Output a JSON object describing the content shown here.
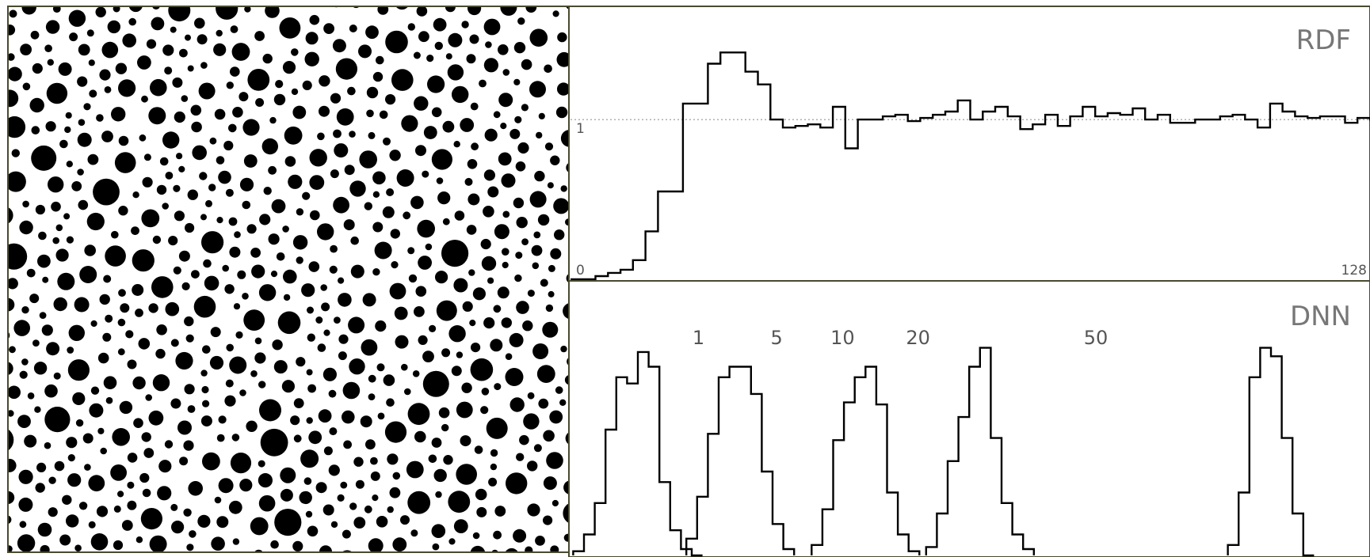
{
  "colors": {
    "frame": "#4a4a30",
    "ink": "#000000",
    "label": "#555555",
    "panel_title": "#777777",
    "reference_line": "#888888",
    "background": "#ffffff"
  },
  "point_pattern": {
    "shape": "disk",
    "color": "#000000",
    "size_classes": [
      "small",
      "medium",
      "large"
    ],
    "note_visible": ""
  },
  "chart_data": [
    {
      "panel": "rdf",
      "type": "line",
      "style": "step",
      "title": "RDF",
      "xlim": [
        0,
        128
      ],
      "ylim": [
        0,
        1.6
      ],
      "x_tick_labels": [
        "0",
        "128"
      ],
      "y_tick_labels": [
        "1"
      ],
      "reference_line": 1,
      "grid": false,
      "bin_width": 2,
      "values": [
        0.0,
        0.0,
        0.02,
        0.04,
        0.06,
        0.12,
        0.3,
        0.55,
        0.55,
        1.1,
        1.1,
        1.35,
        1.42,
        1.42,
        1.3,
        1.22,
        1.0,
        0.95,
        0.96,
        0.97,
        0.95,
        1.08,
        0.82,
        1.0,
        1.0,
        1.02,
        1.03,
        0.99,
        1.01,
        1.03,
        1.05,
        1.12,
        1.0,
        1.05,
        1.08,
        1.02,
        0.94,
        0.97,
        1.03,
        0.96,
        1.02,
        1.08,
        1.02,
        1.04,
        1.03,
        1.07,
        1.0,
        1.03,
        0.98,
        0.98,
        1.0,
        1.0,
        1.02,
        1.03,
        1.0,
        0.95,
        1.1,
        1.05,
        1.02,
        1.01,
        1.02,
        1.02,
        0.98,
        1.01,
        1.0
      ]
    },
    {
      "panel": "dnn",
      "type": "line",
      "style": "step",
      "title": "DNN",
      "grid": false,
      "series": [
        {
          "name": "1",
          "x0": 2,
          "bin_width": 8,
          "values": [
            0.02,
            0.1,
            0.25,
            0.6,
            0.85,
            0.82,
            0.97,
            0.9,
            0.35,
            0.12,
            0.03,
            0.0
          ]
        },
        {
          "name": "5",
          "x0": 86,
          "bin_width": 8,
          "values": [
            0.08,
            0.28,
            0.58,
            0.85,
            0.9,
            0.9,
            0.77,
            0.4,
            0.15,
            0.03
          ]
        },
        {
          "name": "10",
          "x0": 179,
          "bin_width": 8,
          "values": [
            0.05,
            0.22,
            0.55,
            0.73,
            0.85,
            0.9,
            0.72,
            0.3,
            0.1,
            0.02
          ]
        },
        {
          "name": "20",
          "x0": 264,
          "bin_width": 8,
          "values": [
            0.04,
            0.2,
            0.45,
            0.66,
            0.9,
            0.99,
            0.56,
            0.25,
            0.1,
            0.03
          ]
        },
        {
          "name": "50",
          "x0": 488,
          "bin_width": 8,
          "values": [
            0.05,
            0.3,
            0.85,
            0.99,
            0.95,
            0.56,
            0.2,
            0.0
          ]
        }
      ],
      "label_x": [
        95,
        153,
        202,
        258,
        390
      ]
    }
  ]
}
